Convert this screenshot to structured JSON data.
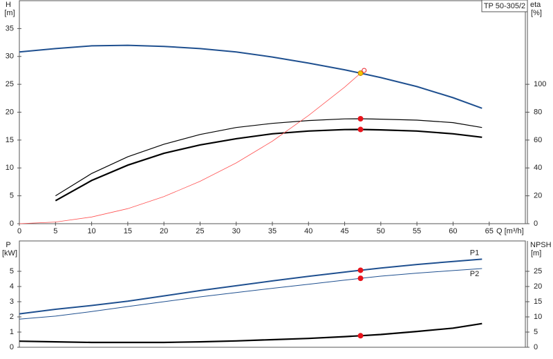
{
  "chart_data": [
    {
      "type": "line",
      "title": "TP 50-305/2",
      "xlabel": "Q [m³/h]",
      "ylabel": "H",
      "yunit": "[m]",
      "y2label": "eta",
      "y2unit": "[%]",
      "xlim": [
        0,
        70
      ],
      "xticks": [
        0,
        5,
        10,
        15,
        20,
        25,
        30,
        35,
        40,
        45,
        50,
        55,
        60,
        65
      ],
      "ylim": [
        0,
        40
      ],
      "yticks": [
        0,
        5,
        10,
        15,
        20,
        25,
        30,
        35
      ],
      "y2lim": [
        0,
        160
      ],
      "y2ticks": [
        0,
        20,
        40,
        60,
        80,
        100
      ],
      "series": [
        {
          "color": "#1e4f8f",
          "width": 2,
          "axis": "y",
          "x": [
            0,
            5,
            10,
            15,
            20,
            25,
            30,
            35,
            40,
            45,
            47.2,
            50,
            55,
            60,
            64
          ],
          "values": [
            30.8,
            31.4,
            31.9,
            32.0,
            31.8,
            31.4,
            30.8,
            29.9,
            28.8,
            27.6,
            27.0,
            26.2,
            24.6,
            22.6,
            20.7
          ]
        },
        {
          "color": "#000000",
          "width": 1.2,
          "axis": "y2",
          "x": [
            5,
            10,
            15,
            20,
            25,
            30,
            35,
            40,
            45,
            47.2,
            50,
            55,
            60,
            64
          ],
          "values": [
            20,
            36,
            48,
            57,
            64,
            69,
            72,
            74,
            75.2,
            75.3,
            75,
            74.3,
            72.5,
            69
          ]
        },
        {
          "color": "#000000",
          "width": 2.2,
          "axis": "y2",
          "x": [
            5,
            10,
            15,
            20,
            25,
            30,
            35,
            40,
            45,
            47.2,
            50,
            55,
            60,
            64
          ],
          "values": [
            16.5,
            31,
            42,
            50.5,
            56.5,
            61,
            64.5,
            66.5,
            67.5,
            67.6,
            67.3,
            66.5,
            64.5,
            62
          ]
        },
        {
          "color": "#ff5050",
          "width": 0.8,
          "axis": "y",
          "x": [
            0,
            5,
            10,
            15,
            20,
            25,
            30,
            35,
            40,
            45,
            47.2
          ],
          "values": [
            0,
            0.3,
            1.2,
            2.7,
            4.85,
            7.6,
            10.9,
            14.8,
            19.4,
            24.5,
            27.0
          ]
        }
      ],
      "points": [
        {
          "x": 47.2,
          "y": 75.3,
          "axis": "y2",
          "color": "#e8141c",
          "hollow": false
        },
        {
          "x": 47.2,
          "y": 67.6,
          "axis": "y2",
          "color": "#e8141c",
          "hollow": false
        },
        {
          "x": 47.2,
          "y": 27.0,
          "axis": "y",
          "color": "#f5c400",
          "hollow": false
        },
        {
          "x": 47.7,
          "y": 27.5,
          "axis": "y",
          "color": "#e8141c",
          "hollow": true
        }
      ]
    },
    {
      "type": "line",
      "ylabel": "P",
      "yunit": "[kW]",
      "y2label": "NPSH",
      "y2unit": "[m]",
      "xlim": [
        0,
        70
      ],
      "ylim": [
        0,
        7
      ],
      "yticks": [
        0,
        1,
        2,
        3,
        4,
        5
      ],
      "y2lim": [
        0,
        35
      ],
      "y2ticks": [
        0,
        5,
        10,
        15,
        20,
        25
      ],
      "series": [
        {
          "name": "P1",
          "color": "#1e4f8f",
          "width": 2,
          "axis": "y",
          "x": [
            0,
            5,
            10,
            15,
            20,
            25,
            30,
            35,
            40,
            45,
            47.2,
            50,
            55,
            60,
            64
          ],
          "values": [
            2.2,
            2.5,
            2.75,
            3.03,
            3.38,
            3.73,
            4.05,
            4.37,
            4.67,
            4.95,
            5.07,
            5.22,
            5.45,
            5.65,
            5.8
          ]
        },
        {
          "name": "P2",
          "color": "#1e4f8f",
          "width": 1,
          "axis": "y",
          "x": [
            0,
            5,
            10,
            15,
            20,
            25,
            30,
            35,
            40,
            45,
            47.2,
            50,
            55,
            60,
            64
          ],
          "values": [
            1.85,
            2.05,
            2.35,
            2.68,
            3.0,
            3.32,
            3.6,
            3.88,
            4.15,
            4.42,
            4.54,
            4.68,
            4.88,
            5.05,
            5.18
          ]
        },
        {
          "color": "#000000",
          "width": 2.2,
          "axis": "y2",
          "x": [
            0,
            5,
            10,
            15,
            20,
            25,
            30,
            35,
            40,
            45,
            47.2,
            50,
            55,
            60,
            64
          ],
          "values": [
            2.0,
            1.8,
            1.6,
            1.6,
            1.6,
            1.8,
            2.1,
            2.5,
            2.9,
            3.5,
            3.8,
            4.2,
            5.2,
            6.3,
            7.8
          ]
        }
      ],
      "points": [
        {
          "x": 47.2,
          "y": 5.07,
          "axis": "y",
          "color": "#e8141c",
          "hollow": false
        },
        {
          "x": 47.2,
          "y": 4.54,
          "axis": "y",
          "color": "#e8141c",
          "hollow": false
        },
        {
          "x": 47.2,
          "y": 3.8,
          "axis": "y2",
          "color": "#e8141c",
          "hollow": false
        }
      ]
    }
  ]
}
